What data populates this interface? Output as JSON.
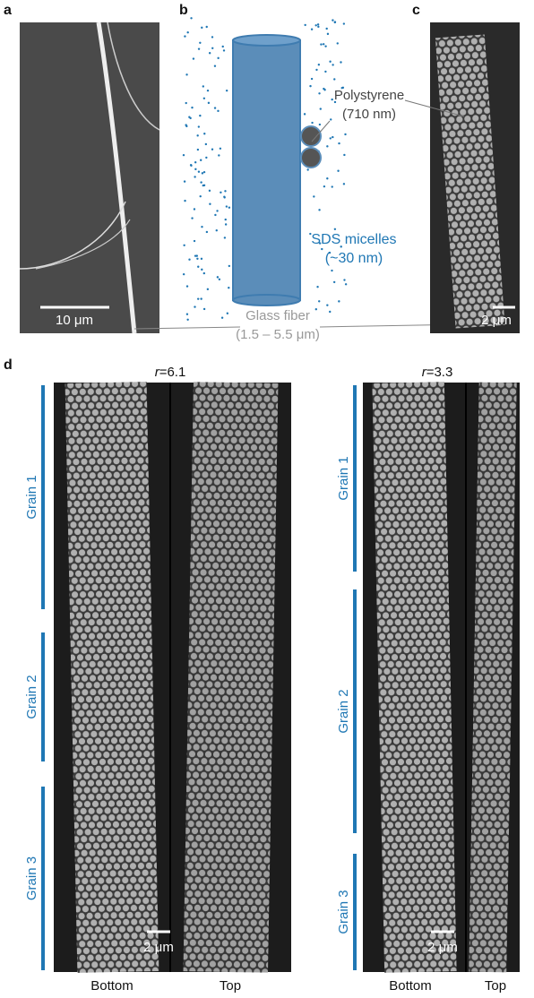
{
  "panels": {
    "a": {
      "label": "a",
      "scale_bar": "10 μm"
    },
    "b": {
      "label": "b",
      "polystyrene": "Polystyrene",
      "polystyrene_size": "(710 nm)",
      "micelles": "SDS micelles",
      "micelles_size": "(~30 nm)",
      "fiber": "Glass fiber",
      "fiber_size": "(1.5 – 5.5 μm)"
    },
    "c": {
      "label": "c",
      "scale_bar": "2 μm"
    },
    "d": {
      "label": "d",
      "samples": [
        {
          "ratio_symbol": "r",
          "ratio_value": "=6.1",
          "grains": [
            "Grain 1",
            "Grain 2",
            "Grain 3"
          ],
          "scale_bar": "2 μm",
          "views": [
            "Bottom",
            "Top"
          ]
        },
        {
          "ratio_symbol": "r",
          "ratio_value": "=3.3",
          "grains": [
            "Grain 1",
            "Grain 2",
            "Grain 3"
          ],
          "scale_bar": "2 μm",
          "views": [
            "Bottom",
            "Top"
          ]
        }
      ]
    }
  }
}
